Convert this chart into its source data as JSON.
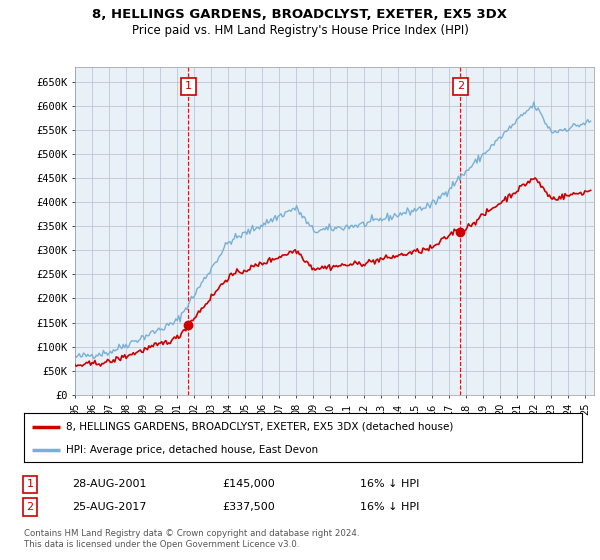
{
  "title": "8, HELLINGS GARDENS, BROADCLYST, EXETER, EX5 3DX",
  "subtitle": "Price paid vs. HM Land Registry's House Price Index (HPI)",
  "ylabel_ticks": [
    "£0",
    "£50K",
    "£100K",
    "£150K",
    "£200K",
    "£250K",
    "£300K",
    "£350K",
    "£400K",
    "£450K",
    "£500K",
    "£550K",
    "£600K",
    "£650K"
  ],
  "ytick_values": [
    0,
    50000,
    100000,
    150000,
    200000,
    250000,
    300000,
    350000,
    400000,
    450000,
    500000,
    550000,
    600000,
    650000
  ],
  "ylim": [
    0,
    680000
  ],
  "xlim_start": 1995.0,
  "xlim_end": 2025.5,
  "purchase1_x": 2001.65,
  "purchase1_y": 145000,
  "purchase1_label": "1",
  "purchase2_x": 2017.65,
  "purchase2_y": 337500,
  "purchase2_label": "2",
  "line_color_property": "#cc0000",
  "line_color_hpi": "#7ab0d4",
  "plot_bg_color": "#e8f0f8",
  "legend_property": "8, HELLINGS GARDENS, BROADCLYST, EXETER, EX5 3DX (detached house)",
  "legend_hpi": "HPI: Average price, detached house, East Devon",
  "table_row1": [
    "1",
    "28-AUG-2001",
    "£145,000",
    "16% ↓ HPI"
  ],
  "table_row2": [
    "2",
    "25-AUG-2017",
    "£337,500",
    "16% ↓ HPI"
  ],
  "footer": "Contains HM Land Registry data © Crown copyright and database right 2024.\nThis data is licensed under the Open Government Licence v3.0.",
  "background_color": "#ffffff",
  "grid_color": "#bbbbcc"
}
